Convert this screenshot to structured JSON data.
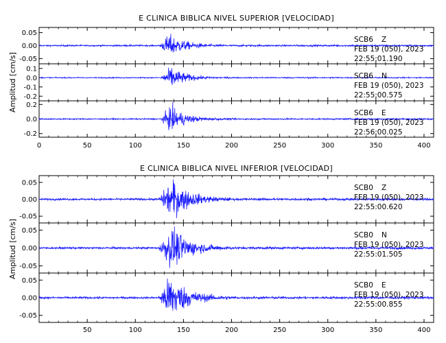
{
  "colors": {
    "trace": "#1a1aff",
    "axis": "#000000",
    "background": "#ffffff"
  },
  "chart_data": [
    {
      "type": "line",
      "title": "E CLINICA BIBLICA NIVEL SUPERIOR [VELOCIDAD]",
      "ylabel": "Amplitud [cm/s]",
      "xlim": [
        0,
        410
      ],
      "xticks": [
        "0",
        "50",
        "100",
        "150",
        "200",
        "250",
        "300",
        "350",
        "400"
      ],
      "channels": [
        {
          "station": "SCB6",
          "component": "Z",
          "date": "FEB 19 (050), 2023",
          "time": "22:55:01.190",
          "ylim": [
            -0.07,
            0.07
          ],
          "yticks": [
            "0.05",
            "0.00",
            "-0.05"
          ],
          "envelope": {
            "pre": 0.002,
            "onset": 125,
            "peak_t": 135,
            "peak": 0.03,
            "decay": 16,
            "coda_end": 200
          }
        },
        {
          "station": "SCB6",
          "component": "N",
          "date": "FEB 19 (050), 2023",
          "time": "22:55:00.575",
          "ylim": [
            -0.25,
            0.15
          ],
          "yticks": [
            "0.1",
            "0.0",
            "-0.1",
            "-0.2"
          ],
          "envelope": {
            "pre": 0.004,
            "onset": 126,
            "peak_t": 137,
            "peak": 0.08,
            "decay": 15,
            "coda_end": 200
          }
        },
        {
          "station": "SCB6",
          "component": "E",
          "date": "FEB 19 (050), 2023",
          "time": "22:56:00.025",
          "ylim": [
            -0.25,
            0.25
          ],
          "yticks": [
            "0.2",
            "0.0",
            "-0.2"
          ],
          "envelope": {
            "pre": 0.006,
            "onset": 126,
            "peak_t": 137,
            "peak": 0.12,
            "decay": 15,
            "coda_end": 200
          }
        }
      ]
    },
    {
      "type": "line",
      "title": "E CLINICA BIBLICA NIVEL INFERIOR [VELOCIDAD]",
      "ylabel": "Amplitud [cm/s]",
      "xlim": [
        0,
        410
      ],
      "xticks": [
        "50",
        "100",
        "150",
        "200",
        "250",
        "300",
        "350",
        "400"
      ],
      "channels": [
        {
          "station": "SCB0",
          "component": "Z",
          "date": "FEB 19 (050), 2023",
          "time": "22:55:00.620",
          "ylim": [
            -0.07,
            0.07
          ],
          "yticks": [
            "0.05",
            "0.00",
            "-0.05"
          ],
          "envelope": {
            "pre": 0.002,
            "onset": 124,
            "peak_t": 138,
            "peak": 0.04,
            "decay": 18,
            "coda_end": 200
          }
        },
        {
          "station": "SCB0",
          "component": "N",
          "date": "FEB 19 (050), 2023",
          "time": "22:55:01.505",
          "ylim": [
            -0.07,
            0.07
          ],
          "yticks": [
            "0.05",
            "0.00",
            "-0.05"
          ],
          "envelope": {
            "pre": 0.002,
            "onset": 124,
            "peak_t": 138,
            "peak": 0.04,
            "decay": 18,
            "coda_end": 200
          }
        },
        {
          "station": "SCB0",
          "component": "E",
          "date": "FEB 19 (050), 2023",
          "time": "22:55:00.855",
          "ylim": [
            -0.07,
            0.07
          ],
          "yticks": [
            "0.05",
            "0.00",
            "-0.05"
          ],
          "envelope": {
            "pre": 0.002,
            "onset": 124,
            "peak_t": 136,
            "peak": 0.045,
            "decay": 18,
            "coda_end": 200
          }
        }
      ]
    }
  ]
}
